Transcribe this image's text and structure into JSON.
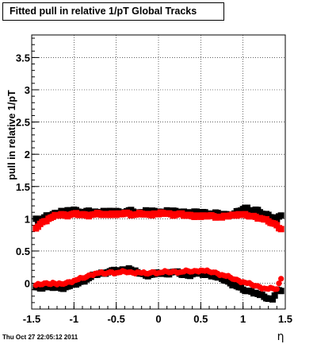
{
  "chart_data": {
    "type": "scatter",
    "title": "Fitted pull in relative 1/pT  Global Tracks",
    "xlabel": "η",
    "ylabel": "pull in relative 1/pT",
    "xlim": [
      -1.5,
      1.5
    ],
    "ylim": [
      -0.4,
      3.85
    ],
    "x_ticks": [
      "-1.5",
      "-1",
      "-0.5",
      "0",
      "0.5",
      "1",
      "1.5"
    ],
    "y_ticks": [
      "0",
      "0.5",
      "1",
      "1.5",
      "2",
      "2.5",
      "3",
      "3.5"
    ],
    "grid": true,
    "x": [
      -1.45,
      -1.4,
      -1.35,
      -1.3,
      -1.25,
      -1.2,
      -1.15,
      -1.1,
      -1.05,
      -1.0,
      -0.95,
      -0.9,
      -0.85,
      -0.8,
      -0.75,
      -0.7,
      -0.65,
      -0.6,
      -0.55,
      -0.5,
      -0.45,
      -0.4,
      -0.35,
      -0.3,
      -0.25,
      -0.2,
      -0.15,
      -0.1,
      -0.05,
      0.0,
      0.05,
      0.1,
      0.15,
      0.2,
      0.25,
      0.3,
      0.35,
      0.4,
      0.45,
      0.5,
      0.55,
      0.6,
      0.65,
      0.7,
      0.75,
      0.8,
      0.85,
      0.9,
      0.95,
      1.0,
      1.05,
      1.1,
      1.15,
      1.2,
      1.25,
      1.3,
      1.35,
      1.4,
      1.45
    ],
    "series": [
      {
        "color": "#000000",
        "marker": "square",
        "values": [
          1.0,
          0.98,
          1.02,
          1.05,
          1.07,
          1.09,
          1.12,
          1.1,
          1.13,
          1.14,
          1.11,
          1.09,
          1.12,
          1.1,
          1.11,
          1.08,
          1.12,
          1.1,
          1.11,
          1.12,
          1.09,
          1.1,
          1.13,
          1.11,
          1.08,
          1.1,
          1.13,
          1.1,
          1.12,
          1.11,
          1.09,
          1.13,
          1.1,
          1.12,
          1.09,
          1.11,
          1.1,
          1.08,
          1.11,
          1.09,
          1.1,
          1.08,
          1.07,
          1.09,
          1.06,
          1.07,
          1.05,
          1.08,
          1.12,
          1.15,
          1.17,
          1.12,
          1.14,
          1.1,
          1.07,
          1.06,
          1.02,
          0.99,
          1.05
        ]
      },
      {
        "color": "#000000",
        "marker": "square",
        "values": [
          -0.06,
          -0.08,
          -0.05,
          -0.06,
          -0.07,
          -0.05,
          -0.08,
          -0.06,
          -0.04,
          -0.02,
          0.0,
          0.03,
          0.06,
          0.1,
          0.13,
          0.15,
          0.16,
          0.17,
          0.2,
          0.18,
          0.2,
          0.21,
          0.23,
          0.19,
          0.17,
          0.15,
          0.12,
          0.13,
          0.14,
          0.16,
          0.15,
          0.14,
          0.17,
          0.18,
          0.15,
          0.13,
          0.12,
          0.14,
          0.16,
          0.15,
          0.13,
          0.14,
          0.11,
          0.09,
          0.07,
          0.04,
          0.0,
          -0.03,
          -0.06,
          -0.1,
          -0.12,
          -0.13,
          -0.15,
          -0.18,
          -0.21,
          -0.24,
          -0.25,
          -0.1,
          -0.12
        ]
      },
      {
        "color": "#ff0000",
        "marker": "square",
        "values": [
          0.85,
          0.92,
          0.96,
          1.0,
          1.03,
          1.05,
          1.07,
          1.05,
          1.06,
          1.08,
          1.06,
          1.07,
          1.05,
          1.06,
          1.07,
          1.08,
          1.06,
          1.07,
          1.08,
          1.06,
          1.07,
          1.09,
          1.08,
          1.06,
          1.07,
          1.08,
          1.07,
          1.06,
          1.08,
          1.07,
          1.09,
          1.08,
          1.07,
          1.06,
          1.08,
          1.05,
          1.06,
          1.04,
          1.05,
          1.03,
          1.04,
          1.05,
          1.04,
          1.03,
          1.02,
          1.04,
          1.05,
          1.06,
          1.07,
          1.06,
          1.05,
          1.04,
          1.03,
          1.01,
          0.99,
          0.96,
          0.93,
          0.9,
          0.84
        ]
      },
      {
        "color": "#ff0000",
        "marker": "circle",
        "values": [
          -0.03,
          -0.02,
          0.0,
          -0.01,
          0.01,
          -0.02,
          -0.01,
          0.0,
          0.02,
          0.04,
          0.06,
          0.08,
          0.1,
          0.13,
          0.15,
          0.16,
          0.15,
          0.16,
          0.17,
          0.16,
          0.17,
          0.18,
          0.17,
          0.16,
          0.17,
          0.16,
          0.15,
          0.16,
          0.17,
          0.16,
          0.17,
          0.18,
          0.17,
          0.18,
          0.17,
          0.18,
          0.19,
          0.18,
          0.19,
          0.2,
          0.19,
          0.18,
          0.17,
          0.15,
          0.13,
          0.11,
          0.09,
          0.06,
          0.04,
          0.02,
          0.0,
          -0.02,
          -0.04,
          -0.06,
          -0.08,
          -0.09,
          -0.08,
          -0.09,
          0.07
        ]
      }
    ]
  },
  "timestamp": "Thu Oct 27 22:05:12 2011"
}
